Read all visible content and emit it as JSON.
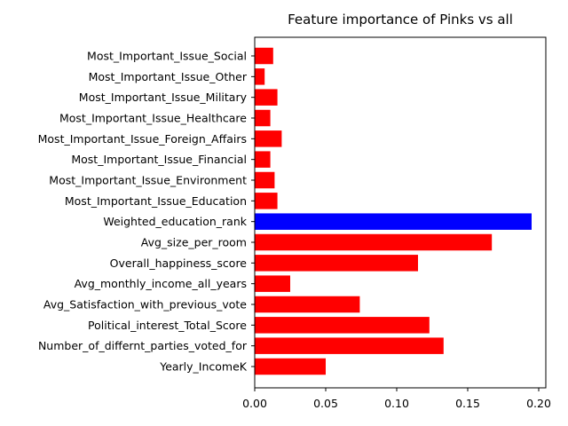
{
  "chart_data": {
    "type": "bar",
    "orientation": "horizontal",
    "title": "Feature importance of Pinks vs all",
    "xlabel": "",
    "ylabel": "",
    "xlim": [
      0,
      0.205
    ],
    "xticks": [
      "0.00",
      "0.05",
      "0.10",
      "0.15",
      "0.20"
    ],
    "xtick_values": [
      0,
      0.05,
      0.1,
      0.15,
      0.2
    ],
    "grid": false,
    "categories": [
      "Most_Important_Issue_Social",
      "Most_Important_Issue_Other",
      "Most_Important_Issue_Military",
      "Most_Important_Issue_Healthcare",
      "Most_Important_Issue_Foreign_Affairs",
      "Most_Important_Issue_Financial",
      "Most_Important_Issue_Environment",
      "Most_Important_Issue_Education",
      "Weighted_education_rank",
      "Avg_size_per_room",
      "Overall_happiness_score",
      "Avg_monthly_income_all_years",
      "Avg_Satisfaction_with_previous_vote",
      "Political_interest_Total_Score",
      "Number_of_differnt_parties_voted_for",
      "Yearly_IncomeK"
    ],
    "values": [
      0.013,
      0.007,
      0.016,
      0.011,
      0.019,
      0.011,
      0.014,
      0.016,
      0.195,
      0.167,
      0.115,
      0.025,
      0.074,
      0.123,
      0.133,
      0.05
    ],
    "highlight_index": 8,
    "colors": {
      "default": "#ff0000",
      "highlight": "#0000ff"
    }
  }
}
